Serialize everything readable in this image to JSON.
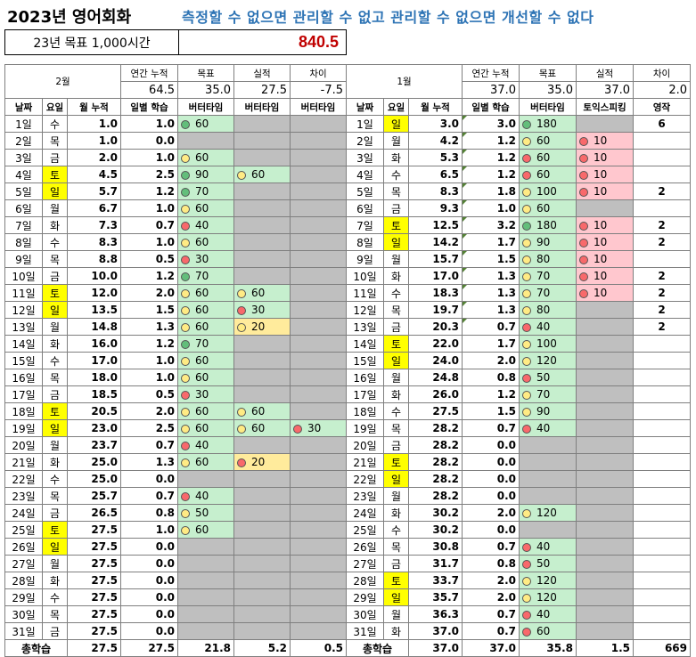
{
  "title": "2023년 영어회화",
  "motto": "측정할 수 없으면  관리할 수 없고 관리할 수 없으면 개선할 수 없다",
  "goal": {
    "label": "23년 목표 1,000시간",
    "value": "840.5"
  },
  "colors": {
    "yellow": "#ffff00",
    "gray": "#bfbfbf",
    "green": "#c6efce",
    "red": "#ffc7ce",
    "amber": "#ffeb9c",
    "title_blue": "#2e74b5",
    "goal_red": "#c00000"
  },
  "icon_legend": {
    "g": "green-circle",
    "y": "yellow-circle",
    "r": "red-circle"
  },
  "feb": {
    "month": "2월",
    "sum_labels": [
      "연간 누적",
      "목표",
      "실적",
      "차이"
    ],
    "sum_values": [
      "64.5",
      "35.0",
      "27.5",
      "-7.5"
    ],
    "cols": [
      "날짜",
      "요일",
      "월 누적",
      "일별 학습",
      "버터타임",
      "버터타임",
      "버터타임"
    ],
    "rows": [
      [
        "1일",
        "수",
        "1.0",
        "1.0",
        "60",
        "",
        ""
      ],
      [
        "2일",
        "목",
        "1.0",
        "0.0",
        "",
        "",
        ""
      ],
      [
        "3일",
        "금",
        "2.0",
        "1.0",
        "60",
        "",
        ""
      ],
      [
        "4일",
        "토",
        "4.5",
        "2.5",
        "90",
        "60",
        ""
      ],
      [
        "5일",
        "일",
        "5.7",
        "1.2",
        "70",
        "",
        ""
      ],
      [
        "6일",
        "월",
        "6.7",
        "1.0",
        "60",
        "",
        ""
      ],
      [
        "7일",
        "화",
        "7.3",
        "0.7",
        "40",
        "",
        ""
      ],
      [
        "8일",
        "수",
        "8.3",
        "1.0",
        "60",
        "",
        ""
      ],
      [
        "9일",
        "목",
        "8.8",
        "0.5",
        "30",
        "",
        ""
      ],
      [
        "10일",
        "금",
        "10.0",
        "1.2",
        "70",
        "",
        ""
      ],
      [
        "11일",
        "토",
        "12.0",
        "2.0",
        "60",
        "60",
        ""
      ],
      [
        "12일",
        "일",
        "13.5",
        "1.5",
        "60",
        "30",
        ""
      ],
      [
        "13일",
        "월",
        "14.8",
        "1.3",
        "60",
        "20",
        ""
      ],
      [
        "14일",
        "화",
        "16.0",
        "1.2",
        "70",
        "",
        ""
      ],
      [
        "15일",
        "수",
        "17.0",
        "1.0",
        "60",
        "",
        ""
      ],
      [
        "16일",
        "목",
        "18.0",
        "1.0",
        "60",
        "",
        ""
      ],
      [
        "17일",
        "금",
        "18.5",
        "0.5",
        "30",
        "",
        ""
      ],
      [
        "18일",
        "토",
        "20.5",
        "2.0",
        "60",
        "60",
        ""
      ],
      [
        "19일",
        "일",
        "23.0",
        "2.5",
        "60",
        "60",
        "30"
      ],
      [
        "20일",
        "월",
        "23.7",
        "0.7",
        "40",
        "",
        ""
      ],
      [
        "21일",
        "화",
        "25.0",
        "1.3",
        "60",
        "20",
        ""
      ],
      [
        "22일",
        "수",
        "25.0",
        "0.0",
        "",
        "",
        ""
      ],
      [
        "23일",
        "목",
        "25.7",
        "0.7",
        "40",
        "",
        ""
      ],
      [
        "24일",
        "금",
        "26.5",
        "0.8",
        "50",
        "",
        ""
      ],
      [
        "25일",
        "토",
        "27.5",
        "1.0",
        "60",
        "",
        ""
      ],
      [
        "26일",
        "일",
        "27.5",
        "0.0",
        "",
        "",
        ""
      ],
      [
        "27일",
        "월",
        "27.5",
        "0.0",
        "",
        "",
        ""
      ],
      [
        "28일",
        "화",
        "27.5",
        "0.0",
        "",
        "",
        ""
      ],
      [
        "29일",
        "수",
        "27.5",
        "0.0",
        "",
        "",
        ""
      ],
      [
        "30일",
        "목",
        "27.5",
        "0.0",
        "",
        "",
        ""
      ],
      [
        "31일",
        "금",
        "27.5",
        "0.0",
        "",
        "",
        ""
      ]
    ],
    "total": [
      "총학습",
      "27.5",
      "27.5",
      "21.8",
      "5.2",
      "0.5"
    ]
  },
  "jan": {
    "month": "1월",
    "sum_labels": [
      "연간 누적",
      "목표",
      "실적",
      "차이"
    ],
    "sum_values": [
      "37.0",
      "35.0",
      "37.0",
      "2.0"
    ],
    "cols": [
      "날짜",
      "요일",
      "월 누적",
      "일별 학습",
      "버터타임",
      "토익스피킹",
      "영작"
    ],
    "rows": [
      [
        "1일",
        "일",
        "3.0",
        "3.0",
        "180",
        "",
        "6"
      ],
      [
        "2일",
        "월",
        "4.2",
        "1.2",
        "60",
        "10",
        ""
      ],
      [
        "3일",
        "화",
        "5.3",
        "1.2",
        "60",
        "10",
        ""
      ],
      [
        "4일",
        "수",
        "6.5",
        "1.2",
        "60",
        "10",
        ""
      ],
      [
        "5일",
        "목",
        "8.3",
        "1.8",
        "100",
        "10",
        "2"
      ],
      [
        "6일",
        "금",
        "9.3",
        "1.0",
        "60",
        "",
        ""
      ],
      [
        "7일",
        "토",
        "12.5",
        "3.2",
        "180",
        "10",
        "2"
      ],
      [
        "8일",
        "일",
        "14.2",
        "1.7",
        "90",
        "10",
        "2"
      ],
      [
        "9일",
        "월",
        "15.7",
        "1.5",
        "80",
        "10",
        ""
      ],
      [
        "10일",
        "화",
        "17.0",
        "1.3",
        "70",
        "10",
        "2"
      ],
      [
        "11일",
        "수",
        "18.3",
        "1.3",
        "70",
        "10",
        "2"
      ],
      [
        "12일",
        "목",
        "19.7",
        "1.3",
        "80",
        "",
        "2"
      ],
      [
        "13일",
        "금",
        "20.3",
        "0.7",
        "40",
        "",
        "2"
      ],
      [
        "14일",
        "토",
        "22.0",
        "1.7",
        "100",
        "",
        ""
      ],
      [
        "15일",
        "일",
        "24.0",
        "2.0",
        "120",
        "",
        ""
      ],
      [
        "16일",
        "월",
        "24.8",
        "0.8",
        "50",
        "",
        ""
      ],
      [
        "17일",
        "화",
        "26.0",
        "1.2",
        "70",
        "",
        ""
      ],
      [
        "18일",
        "수",
        "27.5",
        "1.5",
        "90",
        "",
        ""
      ],
      [
        "19일",
        "목",
        "28.2",
        "0.7",
        "40",
        "",
        ""
      ],
      [
        "20일",
        "금",
        "28.2",
        "0.0",
        "",
        "",
        ""
      ],
      [
        "21일",
        "토",
        "28.2",
        "0.0",
        "",
        "",
        ""
      ],
      [
        "22일",
        "일",
        "28.2",
        "0.0",
        "",
        "",
        ""
      ],
      [
        "23일",
        "월",
        "28.2",
        "0.0",
        "",
        "",
        ""
      ],
      [
        "24일",
        "화",
        "30.2",
        "2.0",
        "120",
        "",
        ""
      ],
      [
        "25일",
        "수",
        "30.2",
        "0.0",
        "",
        "",
        ""
      ],
      [
        "26일",
        "목",
        "30.8",
        "0.7",
        "40",
        "",
        ""
      ],
      [
        "27일",
        "금",
        "31.7",
        "0.8",
        "50",
        "",
        ""
      ],
      [
        "28일",
        "토",
        "33.7",
        "2.0",
        "120",
        "",
        ""
      ],
      [
        "29일",
        "일",
        "35.7",
        "2.0",
        "120",
        "",
        ""
      ],
      [
        "30일",
        "월",
        "36.3",
        "0.7",
        "40",
        "",
        ""
      ],
      [
        "31일",
        "화",
        "37.0",
        "0.7",
        "60",
        "",
        ""
      ]
    ],
    "total": [
      "총학습",
      "37.0",
      "37.0",
      "35.8",
      "1.5",
      "669"
    ]
  },
  "styles": {
    "feb": [
      [
        "",
        "",
        "g",
        ""
      ],
      [
        "",
        "",
        "",
        ""
      ],
      [
        "",
        "",
        "y",
        ""
      ],
      [
        "y",
        "",
        "g",
        "y"
      ],
      [
        "y",
        "",
        "g",
        ""
      ],
      [
        "",
        "",
        "y",
        ""
      ],
      [
        "",
        "",
        "r",
        ""
      ],
      [
        "",
        "",
        "y",
        ""
      ],
      [
        "",
        "",
        "r",
        ""
      ],
      [
        "",
        "",
        "g",
        ""
      ],
      [
        "y",
        "",
        "y",
        "y"
      ],
      [
        "y",
        "",
        "y",
        "r"
      ],
      [
        "",
        "",
        "y",
        "ya"
      ],
      [
        "",
        "",
        "g",
        ""
      ],
      [
        "",
        "",
        "y",
        ""
      ],
      [
        "",
        "",
        "y",
        ""
      ],
      [
        "",
        "",
        "r",
        ""
      ],
      [
        "y",
        "",
        "y",
        "y"
      ],
      [
        "y",
        "",
        "y",
        "y"
      ],
      [
        "",
        "",
        "r",
        ""
      ],
      [
        "",
        "",
        "y",
        "ra"
      ],
      [
        "",
        "",
        "",
        ""
      ],
      [
        "",
        "",
        "r",
        ""
      ],
      [
        "",
        "",
        "y",
        ""
      ],
      [
        "y",
        "",
        "y",
        ""
      ],
      [
        "y",
        "",
        "",
        ""
      ],
      [
        "",
        "",
        "",
        ""
      ],
      [
        "",
        "",
        "",
        ""
      ],
      [
        "",
        "",
        "",
        ""
      ],
      [
        "",
        "",
        "",
        ""
      ],
      [
        "",
        "",
        "",
        ""
      ]
    ],
    "feb3": {
      "18": "r"
    },
    "jan": [
      [
        "y",
        "",
        "g",
        ""
      ],
      [
        "",
        "",
        "y",
        "r"
      ],
      [
        "",
        "",
        "r",
        "r"
      ],
      [
        "",
        "",
        "r",
        "r"
      ],
      [
        "",
        "",
        "y",
        "r"
      ],
      [
        "",
        "",
        "y",
        ""
      ],
      [
        "y",
        "",
        "g",
        "r"
      ],
      [
        "y",
        "",
        "y",
        "r"
      ],
      [
        "",
        "",
        "y",
        "r"
      ],
      [
        "",
        "",
        "y",
        "r"
      ],
      [
        "",
        "",
        "y",
        "r"
      ],
      [
        "",
        "",
        "y",
        ""
      ],
      [
        "",
        "",
        "r",
        ""
      ],
      [
        "y",
        "",
        "y",
        ""
      ],
      [
        "y",
        "",
        "y",
        ""
      ],
      [
        "",
        "",
        "r",
        ""
      ],
      [
        "",
        "",
        "y",
        ""
      ],
      [
        "",
        "",
        "y",
        ""
      ],
      [
        "",
        "",
        "r",
        ""
      ],
      [
        "",
        "",
        "",
        ""
      ],
      [
        "y",
        "",
        "",
        ""
      ],
      [
        "y",
        "",
        "",
        ""
      ],
      [
        "",
        "",
        "",
        ""
      ],
      [
        "",
        "",
        "y",
        ""
      ],
      [
        "",
        "",
        "",
        ""
      ],
      [
        "",
        "",
        "r",
        ""
      ],
      [
        "",
        "",
        "r",
        ""
      ],
      [
        "y",
        "",
        "y",
        ""
      ],
      [
        "y",
        "",
        "y",
        ""
      ],
      [
        "",
        "",
        "r",
        ""
      ],
      [
        "",
        "",
        "r",
        ""
      ]
    ]
  }
}
